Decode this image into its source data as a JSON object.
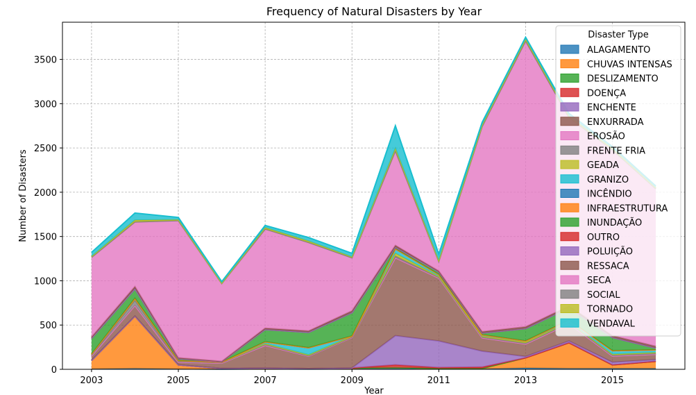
{
  "chart_data": {
    "type": "area",
    "stacked": true,
    "title": "Frequency of Natural Disasters by Year",
    "xlabel": "Year",
    "ylabel": "Number of Disasters",
    "x": [
      2003,
      2004,
      2005,
      2006,
      2007,
      2008,
      2009,
      2010,
      2011,
      2012,
      2013,
      2014,
      2015,
      2016
    ],
    "xticks": [
      "2003",
      "2005",
      "2007",
      "2009",
      "2011",
      "2013",
      "2015"
    ],
    "yticks": [
      "0",
      "500",
      "1000",
      "1500",
      "2000",
      "2500",
      "3000",
      "3500"
    ],
    "ylim": [
      0,
      3920
    ],
    "xlim": [
      2002.33,
      2016.67
    ],
    "grid": true,
    "legend_title": "Disaster Type",
    "legend_position": "top-right",
    "series": [
      {
        "name": "ALAGAMENTO",
        "color": "#1f77b4",
        "values": [
          5,
          10,
          5,
          2,
          5,
          3,
          5,
          10,
          5,
          5,
          15,
          10,
          10,
          10
        ]
      },
      {
        "name": "CHUVAS INTENSAS",
        "color": "#ff7f0e",
        "values": [
          95,
          590,
          45,
          8,
          10,
          5,
          10,
          10,
          5,
          5,
          115,
          290,
          40,
          80
        ]
      },
      {
        "name": "DESLIZAMENTO",
        "color": "#2ca02c",
        "values": [
          0,
          0,
          0,
          0,
          0,
          0,
          0,
          0,
          0,
          0,
          0,
          0,
          0,
          0
        ]
      },
      {
        "name": "DOENÇA",
        "color": "#d62728",
        "values": [
          0,
          0,
          0,
          0,
          0,
          0,
          0,
          30,
          10,
          15,
          0,
          0,
          0,
          0
        ]
      },
      {
        "name": "ENCHENTE",
        "color": "#9467bd",
        "values": [
          0,
          0,
          0,
          0,
          0,
          0,
          0,
          330,
          300,
          180,
          15,
          20,
          30,
          20
        ]
      },
      {
        "name": "ENXURRADA",
        "color": "#8c564b",
        "values": [
          50,
          120,
          30,
          60,
          255,
          140,
          345,
          880,
          710,
          150,
          140,
          195,
          70,
          60
        ]
      },
      {
        "name": "EROSÃO",
        "color": "#e377c2",
        "values": [
          0,
          0,
          0,
          0,
          0,
          0,
          0,
          0,
          0,
          0,
          0,
          0,
          0,
          0
        ]
      },
      {
        "name": "FRENTE FRIA",
        "color": "#7f7f7f",
        "values": [
          10,
          60,
          10,
          5,
          10,
          5,
          5,
          20,
          10,
          10,
          10,
          10,
          10,
          10
        ]
      },
      {
        "name": "GEADA",
        "color": "#bcbd22",
        "values": [
          10,
          20,
          10,
          5,
          10,
          10,
          10,
          30,
          10,
          10,
          15,
          10,
          10,
          10
        ]
      },
      {
        "name": "GRANIZO",
        "color": "#17becf",
        "values": [
          0,
          0,
          0,
          0,
          20,
          80,
          0,
          50,
          20,
          15,
          10,
          20,
          40,
          30
        ]
      },
      {
        "name": "INCÊNDIO",
        "color": "#1f77b4",
        "values": [
          0,
          0,
          0,
          0,
          0,
          0,
          0,
          0,
          0,
          0,
          0,
          0,
          0,
          0
        ]
      },
      {
        "name": "INFRAESTRUTURA",
        "color": "#ff7f0e",
        "values": [
          0,
          0,
          0,
          0,
          0,
          0,
          0,
          0,
          0,
          0,
          0,
          0,
          0,
          0
        ]
      },
      {
        "name": "INUNDAÇÃO",
        "color": "#2ca02c",
        "values": [
          180,
          110,
          20,
          5,
          140,
          175,
          265,
          20,
          30,
          20,
          140,
          140,
          150,
          20
        ]
      },
      {
        "name": "OUTRO",
        "color": "#d62728",
        "values": [
          0,
          0,
          0,
          0,
          0,
          0,
          0,
          0,
          0,
          0,
          0,
          0,
          0,
          0
        ]
      },
      {
        "name": "POLUIÇÃO",
        "color": "#9467bd",
        "values": [
          0,
          0,
          0,
          0,
          0,
          0,
          0,
          0,
          0,
          0,
          0,
          0,
          0,
          0
        ]
      },
      {
        "name": "RESSACA",
        "color": "#8c564b",
        "values": [
          15,
          25,
          10,
          5,
          15,
          15,
          20,
          20,
          10,
          15,
          20,
          20,
          20,
          20
        ]
      },
      {
        "name": "SECA",
        "color": "#e377c2",
        "values": [
          900,
          730,
          1550,
          880,
          1120,
          1000,
          600,
          1070,
          110,
          2320,
          3230,
          2130,
          2100,
          1780
        ]
      },
      {
        "name": "SOCIAL",
        "color": "#7f7f7f",
        "values": [
          0,
          0,
          0,
          0,
          0,
          0,
          0,
          0,
          0,
          0,
          0,
          0,
          0,
          0
        ]
      },
      {
        "name": "TORNADO",
        "color": "#bcbd22",
        "values": [
          10,
          20,
          10,
          5,
          15,
          15,
          10,
          25,
          10,
          15,
          20,
          15,
          15,
          10
        ]
      },
      {
        "name": "VENDAVAL",
        "color": "#17becf",
        "values": [
          45,
          80,
          25,
          15,
          25,
          40,
          40,
          255,
          70,
          30,
          20,
          30,
          20,
          20
        ]
      }
    ]
  }
}
